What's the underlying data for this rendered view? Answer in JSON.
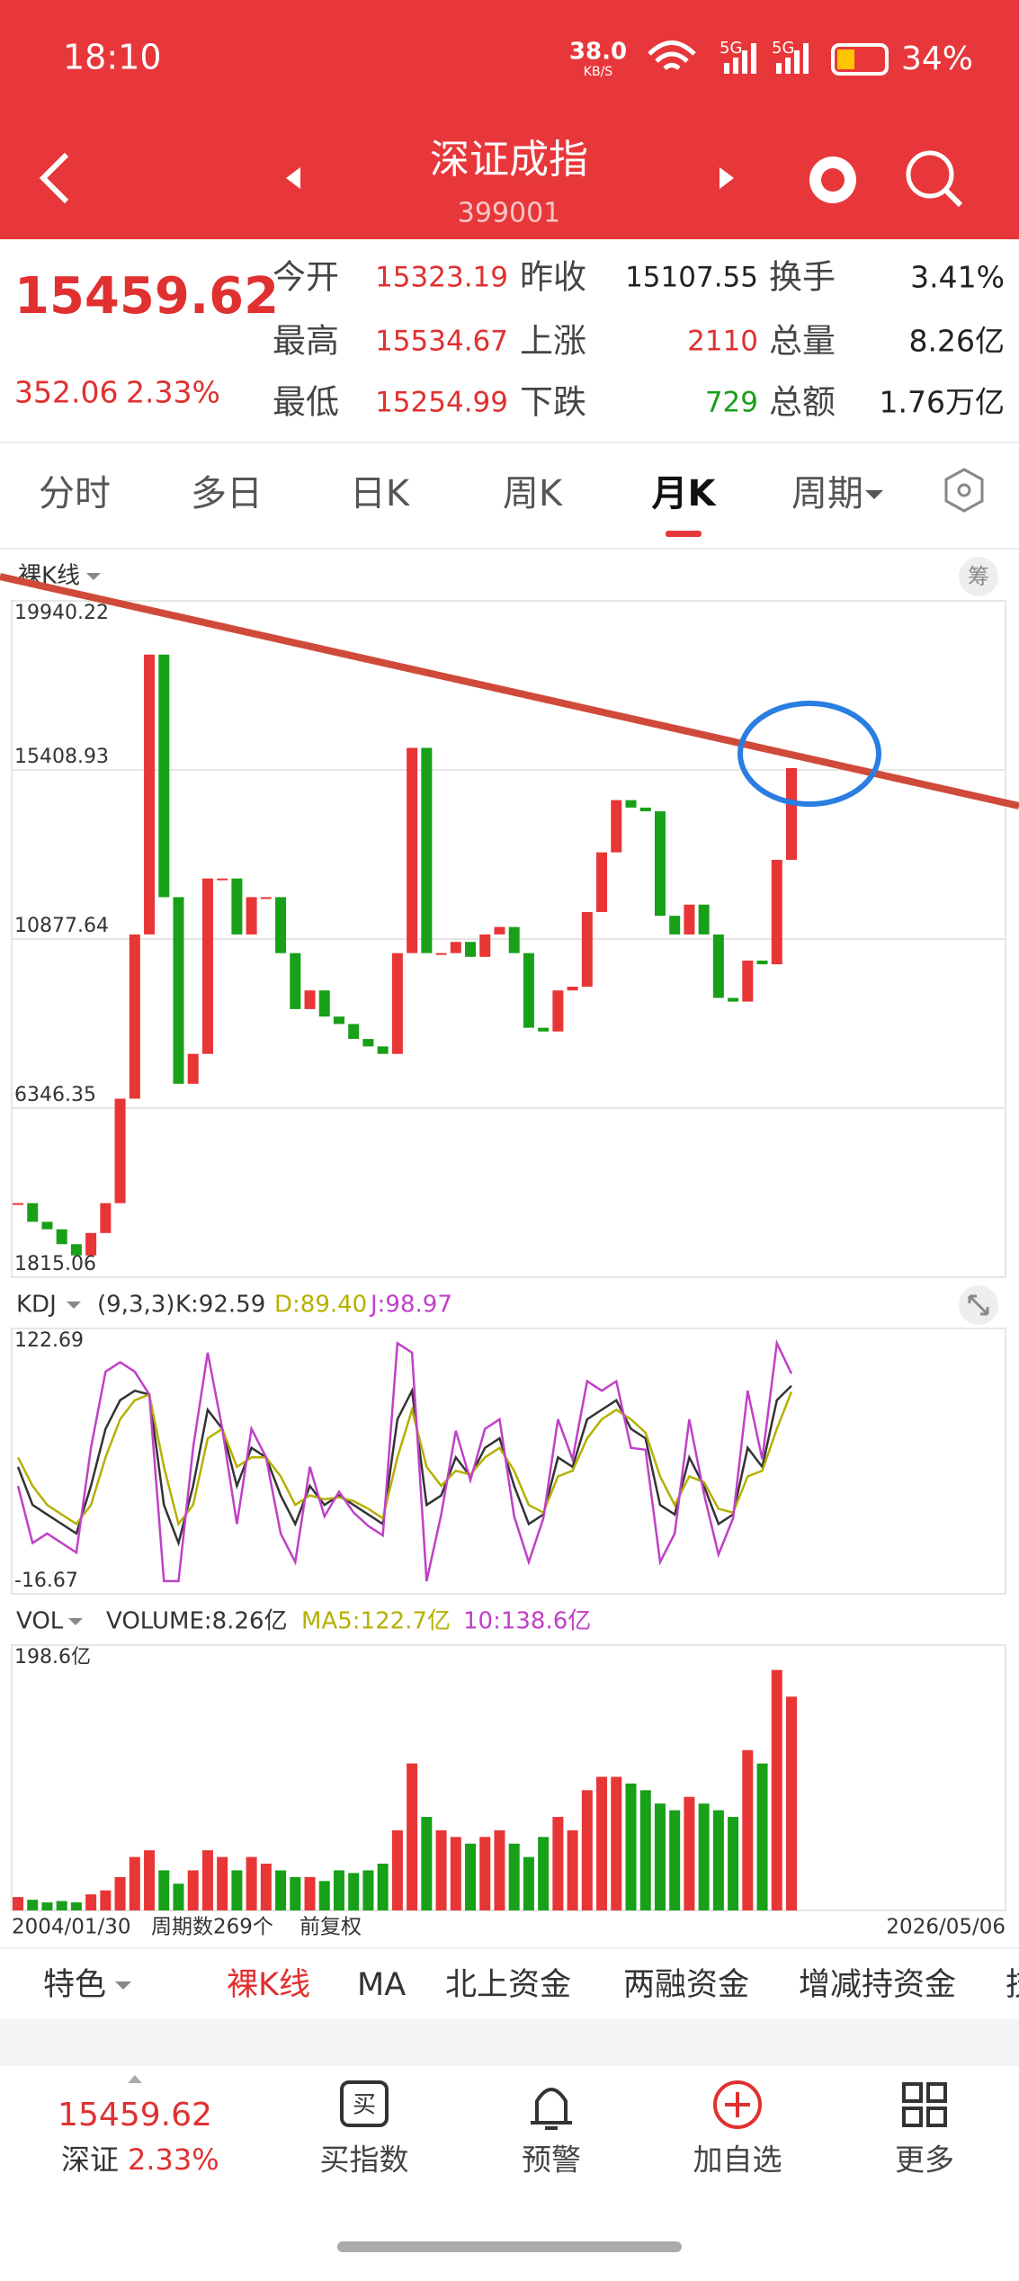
{
  "status_bar": {
    "time": "18:10",
    "speed": "38.0",
    "speed_unit": "KB/S",
    "net1": "5G",
    "net2": "5G",
    "battery": "34%"
  },
  "header": {
    "title": "深证成指",
    "code": "399001"
  },
  "quote": {
    "price": "15459.62",
    "change": "352.06",
    "change_pct": "2.33%",
    "fields": [
      {
        "label": "今开",
        "value": "15323.19"
      },
      {
        "label": "昨收",
        "value": "15107.55"
      },
      {
        "label": "换手",
        "value": "3.41%"
      },
      {
        "label": "最高",
        "value": "15534.67"
      },
      {
        "label": "上涨",
        "value": "2110"
      },
      {
        "label": "总量",
        "value": "8.26亿"
      },
      {
        "label": "最低",
        "value": "15254.99"
      },
      {
        "label": "下跌",
        "value": "729"
      },
      {
        "label": "总额",
        "value": "1.76万亿"
      }
    ]
  },
  "tabs": [
    "分时",
    "多日",
    "日K",
    "周K",
    "月K",
    "周期"
  ],
  "chart_data": [
    {
      "type": "candlestick",
      "label": "裸K线",
      "badge": "筹",
      "up_color": "#e83535",
      "down_color": "#18a018",
      "close": [
        3800,
        3300,
        3100,
        2700,
        2400,
        3000,
        3800,
        6600,
        11000,
        18500,
        12000,
        7000,
        7800,
        12500,
        12500,
        11000,
        12000,
        12000,
        10500,
        9000,
        9500,
        8800,
        8600,
        8200,
        8000,
        7800,
        10500,
        16000,
        10500,
        10500,
        10800,
        10400,
        11000,
        11200,
        10500,
        8500,
        8400,
        9500,
        9600,
        11600,
        13200,
        14600,
        14400,
        14300,
        11500,
        11000,
        11800,
        11000,
        9300,
        9200,
        10300,
        10200,
        13000,
        15459.62
      ],
      "ylim": [
        1815.06,
        19940.22
      ],
      "yticks": [
        19940.22,
        15408.93,
        10877.64,
        6346.35,
        1815.06
      ]
    },
    {
      "type": "line",
      "indicator": "KDJ",
      "params": "(9,3,3)",
      "ylim": [
        -16.67,
        122.69
      ],
      "yticks": [
        122.69,
        -16.67
      ],
      "series": [
        {
          "name": "K",
          "legend": "K:92.59",
          "color": "#333333",
          "values": [
            50,
            30,
            25,
            20,
            15,
            40,
            70,
            85,
            90,
            88,
            30,
            10,
            40,
            80,
            70,
            40,
            60,
            55,
            35,
            20,
            40,
            30,
            35,
            30,
            25,
            20,
            75,
            90,
            30,
            35,
            55,
            45,
            60,
            65,
            40,
            20,
            25,
            55,
            50,
            75,
            80,
            85,
            70,
            65,
            30,
            25,
            55,
            40,
            20,
            25,
            60,
            50,
            85,
            92.59
          ]
        },
        {
          "name": "D",
          "legend": "D:89.40",
          "color": "#b5b000",
          "values": [
            55,
            40,
            30,
            25,
            20,
            30,
            55,
            75,
            85,
            88,
            50,
            20,
            30,
            65,
            70,
            50,
            55,
            55,
            45,
            30,
            35,
            33,
            34,
            32,
            28,
            23,
            55,
            80,
            50,
            40,
            48,
            46,
            55,
            60,
            48,
            30,
            26,
            45,
            48,
            65,
            75,
            80,
            75,
            68,
            45,
            30,
            45,
            42,
            28,
            26,
            45,
            48,
            70,
            89.4
          ]
        },
        {
          "name": "J",
          "legend": "J:98.97",
          "color": "#c040c8",
          "values": [
            40,
            10,
            15,
            10,
            5,
            60,
            100,
            105,
            100,
            88,
            -10,
            -10,
            60,
            110,
            70,
            20,
            70,
            55,
            15,
            0,
            50,
            24,
            37,
            26,
            19,
            14,
            115,
            110,
            -10,
            25,
            69,
            43,
            70,
            75,
            24,
            0,
            23,
            75,
            54,
            95,
            90,
            95,
            60,
            59,
            0,
            15,
            75,
            36,
            4,
            23,
            90,
            54,
            115,
            98.97
          ]
        }
      ]
    },
    {
      "type": "bar",
      "indicator": "VOL",
      "legend": [
        {
          "text": "VOLUME:8.26亿",
          "color": "#333333"
        },
        {
          "text": "MA5:122.7亿",
          "color": "#b5b000"
        },
        {
          "text": "10:138.6亿",
          "color": "#c040c8"
        }
      ],
      "ylim": [
        0,
        198.6
      ],
      "yticks": [
        {
          "value": 198.6,
          "label": "198.6亿"
        }
      ],
      "values": [
        10,
        8,
        6,
        7,
        6,
        12,
        15,
        25,
        40,
        45,
        30,
        20,
        30,
        45,
        40,
        30,
        40,
        35,
        30,
        25,
        25,
        22,
        30,
        28,
        30,
        35,
        60,
        110,
        70,
        60,
        55,
        50,
        55,
        60,
        50,
        40,
        55,
        70,
        60,
        90,
        100,
        100,
        95,
        90,
        80,
        75,
        85,
        80,
        75,
        70,
        120,
        110,
        180,
        160
      ]
    }
  ],
  "x_axis": {
    "start": "2004/01/30",
    "count": "周期数269个",
    "adjust": "前复权",
    "end": "2026/05/06"
  },
  "indicator_tabs": [
    "特色",
    "裸K线",
    "MA",
    "北上资金",
    "两融资金",
    "增减持资金",
    "技"
  ],
  "bottom_nav": {
    "price": "15459.62",
    "name": "深证",
    "pct": "2.33%",
    "items": [
      "买指数",
      "预警",
      "加自选",
      "更多"
    ]
  }
}
